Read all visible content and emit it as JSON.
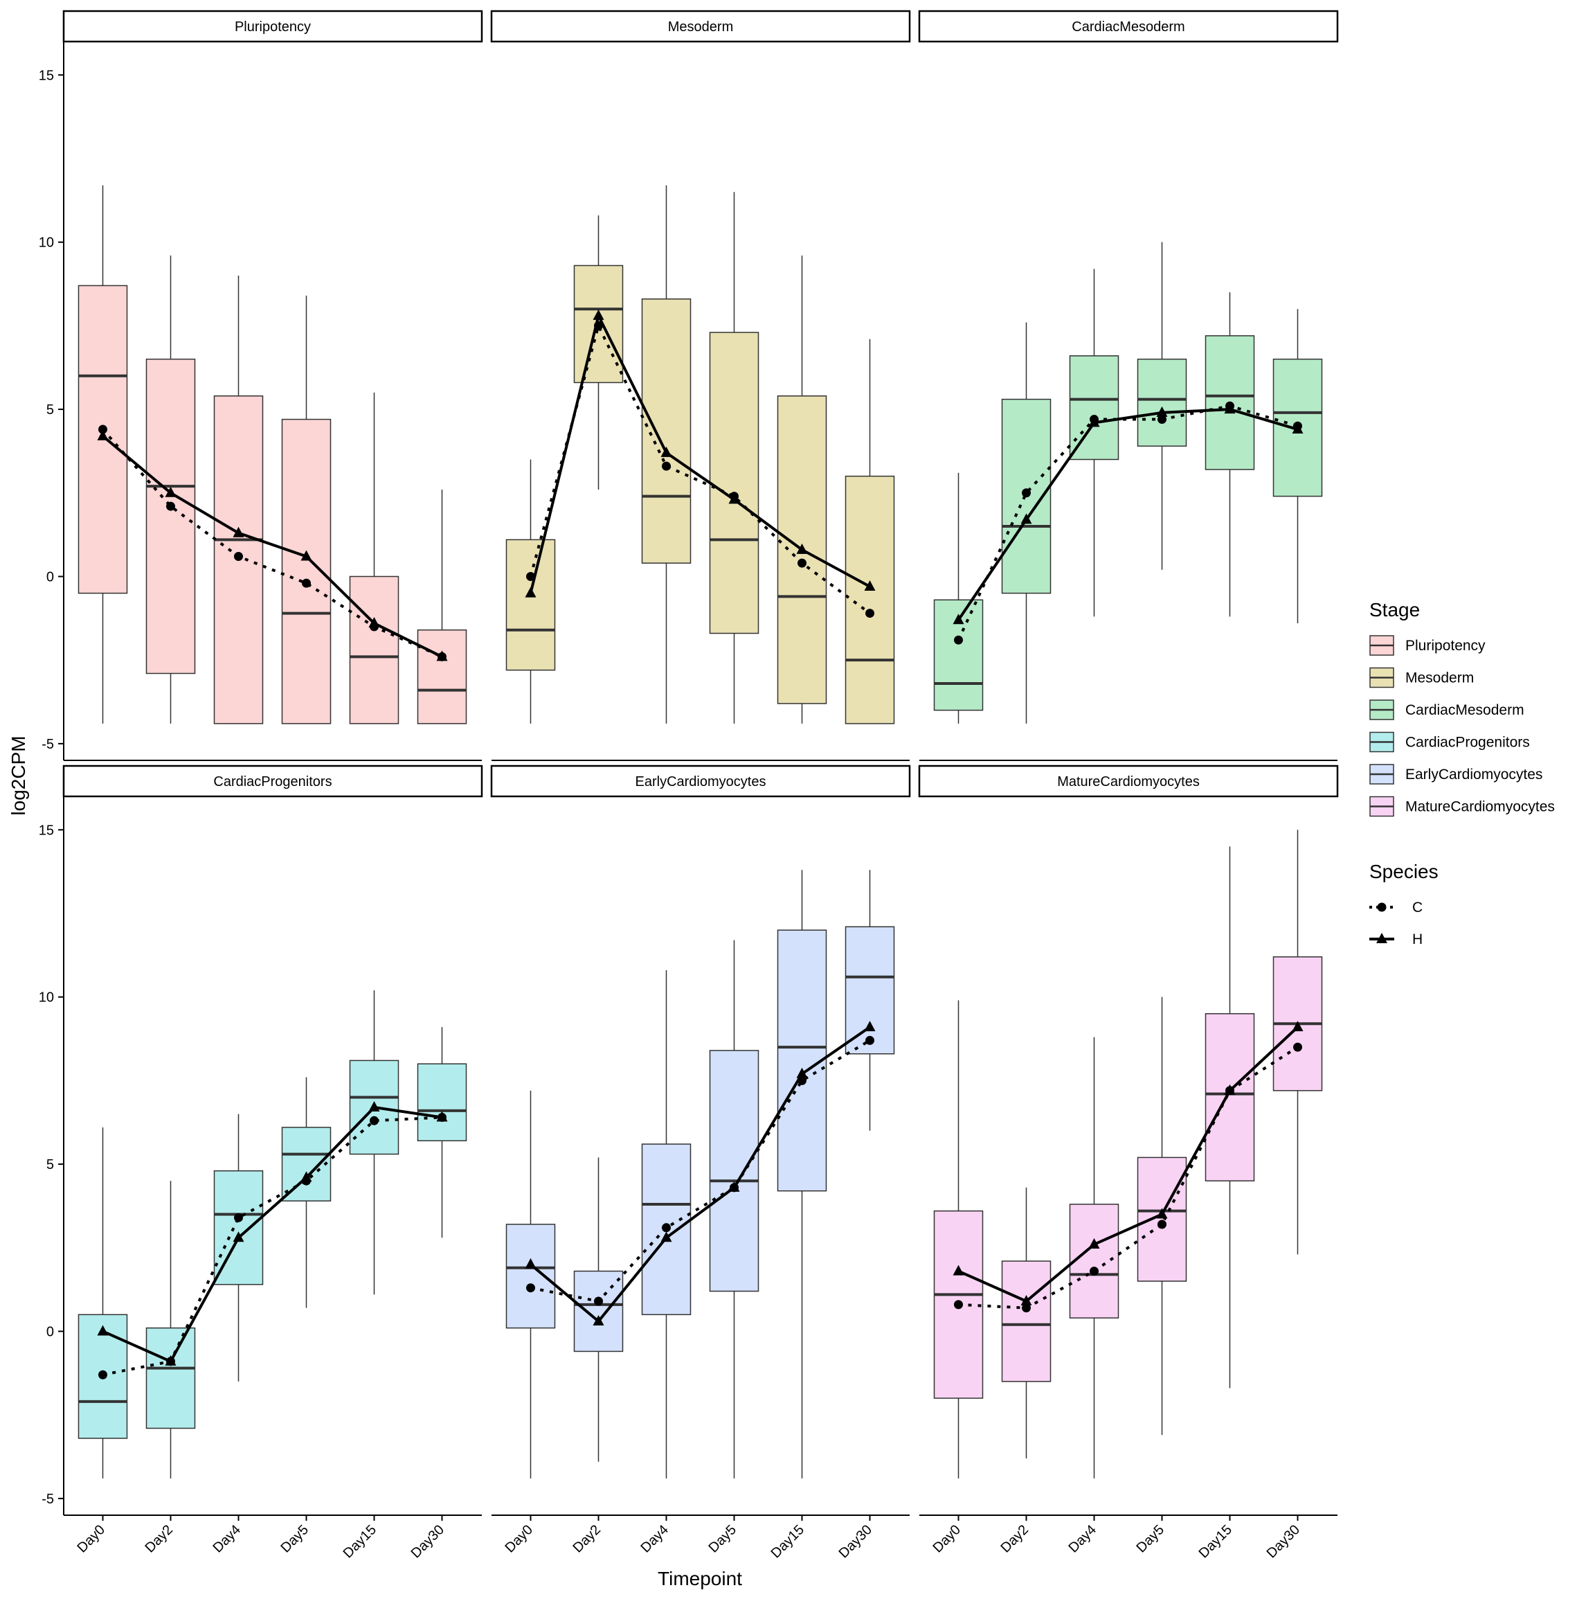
{
  "chart_data": {
    "type": "boxplot",
    "xlabel": "Timepoint",
    "ylabel": "log2CPM",
    "ylim": [
      -5.5,
      16.0
    ],
    "yticks": [
      -5,
      0,
      5,
      10,
      15
    ],
    "categories": [
      "Day0",
      "Day2",
      "Day4",
      "Day5",
      "Day15",
      "Day30"
    ],
    "panels": [
      {
        "name": "Pluripotency",
        "color": "#FCD5D5",
        "boxes": [
          {
            "x": "Day0",
            "min": -4.4,
            "q1": -0.5,
            "median": 6.0,
            "q3": 8.7,
            "max": 11.7
          },
          {
            "x": "Day2",
            "min": -4.4,
            "q1": -2.9,
            "median": 2.7,
            "q3": 6.5,
            "max": 9.6
          },
          {
            "x": "Day4",
            "min": -4.4,
            "q1": -4.4,
            "median": 1.1,
            "q3": 5.4,
            "max": 9.0
          },
          {
            "x": "Day5",
            "min": -4.4,
            "q1": -4.4,
            "median": -1.1,
            "q3": 4.7,
            "max": 8.4
          },
          {
            "x": "Day15",
            "min": -4.4,
            "q1": -4.4,
            "median": -2.4,
            "q3": 0.0,
            "max": 5.5
          },
          {
            "x": "Day30",
            "min": -4.4,
            "q1": -4.4,
            "median": -3.4,
            "q3": -1.6,
            "max": 2.6
          }
        ],
        "species_C": [
          4.4,
          2.1,
          0.6,
          -0.2,
          -1.5,
          -2.4
        ],
        "species_H": [
          4.2,
          2.5,
          1.3,
          0.6,
          -1.4,
          -2.4
        ]
      },
      {
        "name": "Mesoderm",
        "color": "#EAE1B3",
        "boxes": [
          {
            "x": "Day0",
            "min": -4.4,
            "q1": -2.8,
            "median": -1.6,
            "q3": 1.1,
            "max": 3.5
          },
          {
            "x": "Day2",
            "min": 2.6,
            "q1": 5.8,
            "median": 8.0,
            "q3": 9.3,
            "max": 10.8
          },
          {
            "x": "Day4",
            "min": -4.4,
            "q1": 0.4,
            "median": 2.4,
            "q3": 8.3,
            "max": 11.7
          },
          {
            "x": "Day5",
            "min": -4.4,
            "q1": -1.7,
            "median": 1.1,
            "q3": 7.3,
            "max": 11.5
          },
          {
            "x": "Day15",
            "min": -4.4,
            "q1": -3.8,
            "median": -0.6,
            "q3": 5.4,
            "max": 9.6
          },
          {
            "x": "Day30",
            "min": -4.4,
            "q1": -4.4,
            "median": -2.5,
            "q3": 3.0,
            "max": 7.1
          }
        ],
        "species_C": [
          0.0,
          7.5,
          3.3,
          2.4,
          0.4,
          -1.1
        ],
        "species_H": [
          -0.5,
          7.8,
          3.7,
          2.3,
          0.8,
          -0.3
        ]
      },
      {
        "name": "CardiacMesoderm",
        "color": "#B5EAC7",
        "boxes": [
          {
            "x": "Day0",
            "min": -4.4,
            "q1": -4.0,
            "median": -3.2,
            "q3": -0.7,
            "max": 3.1
          },
          {
            "x": "Day2",
            "min": -4.4,
            "q1": -0.5,
            "median": 1.5,
            "q3": 5.3,
            "max": 7.6
          },
          {
            "x": "Day4",
            "min": -1.2,
            "q1": 3.5,
            "median": 5.3,
            "q3": 6.6,
            "max": 9.2
          },
          {
            "x": "Day5",
            "min": 0.2,
            "q1": 3.9,
            "median": 5.3,
            "q3": 6.5,
            "max": 10.0
          },
          {
            "x": "Day15",
            "min": -1.2,
            "q1": 3.2,
            "median": 5.4,
            "q3": 7.2,
            "max": 8.5
          },
          {
            "x": "Day30",
            "min": -1.4,
            "q1": 2.4,
            "median": 4.9,
            "q3": 6.5,
            "max": 8.0
          }
        ],
        "species_C": [
          -1.9,
          2.5,
          4.7,
          4.7,
          5.1,
          4.5
        ],
        "species_H": [
          -1.3,
          1.7,
          4.6,
          4.9,
          5.0,
          4.4
        ]
      },
      {
        "name": "CardiacProgenitors",
        "color": "#B3ECEC",
        "boxes": [
          {
            "x": "Day0",
            "min": -4.4,
            "q1": -3.2,
            "median": -2.1,
            "q3": 0.5,
            "max": 6.1
          },
          {
            "x": "Day2",
            "min": -4.4,
            "q1": -2.9,
            "median": -1.1,
            "q3": 0.1,
            "max": 4.5
          },
          {
            "x": "Day4",
            "min": -1.5,
            "q1": 1.4,
            "median": 3.5,
            "q3": 4.8,
            "max": 6.5
          },
          {
            "x": "Day5",
            "min": 0.7,
            "q1": 3.9,
            "median": 5.3,
            "q3": 6.1,
            "max": 7.6
          },
          {
            "x": "Day15",
            "min": 1.1,
            "q1": 5.3,
            "median": 7.0,
            "q3": 8.1,
            "max": 10.2
          },
          {
            "x": "Day30",
            "min": 2.8,
            "q1": 5.7,
            "median": 6.6,
            "q3": 8.0,
            "max": 9.1
          }
        ],
        "species_C": [
          -1.3,
          -0.9,
          3.4,
          4.5,
          6.3,
          6.4
        ],
        "species_H": [
          0.0,
          -0.9,
          2.8,
          4.6,
          6.7,
          6.4
        ]
      },
      {
        "name": "EarlyCardiomyocytes",
        "color": "#D3E1FC",
        "boxes": [
          {
            "x": "Day0",
            "min": -4.4,
            "q1": 0.1,
            "median": 1.9,
            "q3": 3.2,
            "max": 7.2
          },
          {
            "x": "Day2",
            "min": -3.9,
            "q1": -0.6,
            "median": 0.8,
            "q3": 1.8,
            "max": 5.2
          },
          {
            "x": "Day4",
            "min": -4.4,
            "q1": 0.5,
            "median": 3.8,
            "q3": 5.6,
            "max": 10.8
          },
          {
            "x": "Day5",
            "min": -4.4,
            "q1": 1.2,
            "median": 4.5,
            "q3": 8.4,
            "max": 11.7
          },
          {
            "x": "Day15",
            "min": -4.4,
            "q1": 4.2,
            "median": 8.5,
            "q3": 12.0,
            "max": 13.8
          },
          {
            "x": "Day30",
            "min": 6.0,
            "q1": 8.3,
            "median": 10.6,
            "q3": 12.1,
            "max": 13.8
          }
        ],
        "species_C": [
          1.3,
          0.9,
          3.1,
          4.3,
          7.5,
          8.7
        ],
        "species_H": [
          2.0,
          0.3,
          2.8,
          4.3,
          7.7,
          9.1
        ]
      },
      {
        "name": "MatureCardiomyocytes",
        "color": "#F9D3F4",
        "boxes": [
          {
            "x": "Day0",
            "min": -4.4,
            "q1": -2.0,
            "median": 1.1,
            "q3": 3.6,
            "max": 9.9
          },
          {
            "x": "Day2",
            "min": -3.8,
            "q1": -1.5,
            "median": 0.2,
            "q3": 2.1,
            "max": 4.3
          },
          {
            "x": "Day4",
            "min": -4.4,
            "q1": 0.4,
            "median": 1.7,
            "q3": 3.8,
            "max": 8.8
          },
          {
            "x": "Day5",
            "min": -3.1,
            "q1": 1.5,
            "median": 3.6,
            "q3": 5.2,
            "max": 10.0
          },
          {
            "x": "Day15",
            "min": -1.7,
            "q1": 4.5,
            "median": 7.1,
            "q3": 9.5,
            "max": 14.5
          },
          {
            "x": "Day30",
            "min": 2.3,
            "q1": 7.2,
            "median": 9.2,
            "q3": 11.2,
            "max": 15.0
          }
        ],
        "species_C": [
          0.8,
          0.7,
          1.8,
          3.2,
          7.2,
          8.5
        ],
        "species_H": [
          1.8,
          0.9,
          2.6,
          3.5,
          7.2,
          9.1
        ]
      }
    ],
    "legend": {
      "stage_title": "Stage",
      "stages": [
        "Pluripotency",
        "Mesoderm",
        "CardiacMesoderm",
        "CardiacProgenitors",
        "EarlyCardiomyocytes",
        "MatureCardiomyocytes"
      ],
      "species_title": "Species",
      "species": [
        "C",
        "H"
      ],
      "placement": "right"
    }
  }
}
